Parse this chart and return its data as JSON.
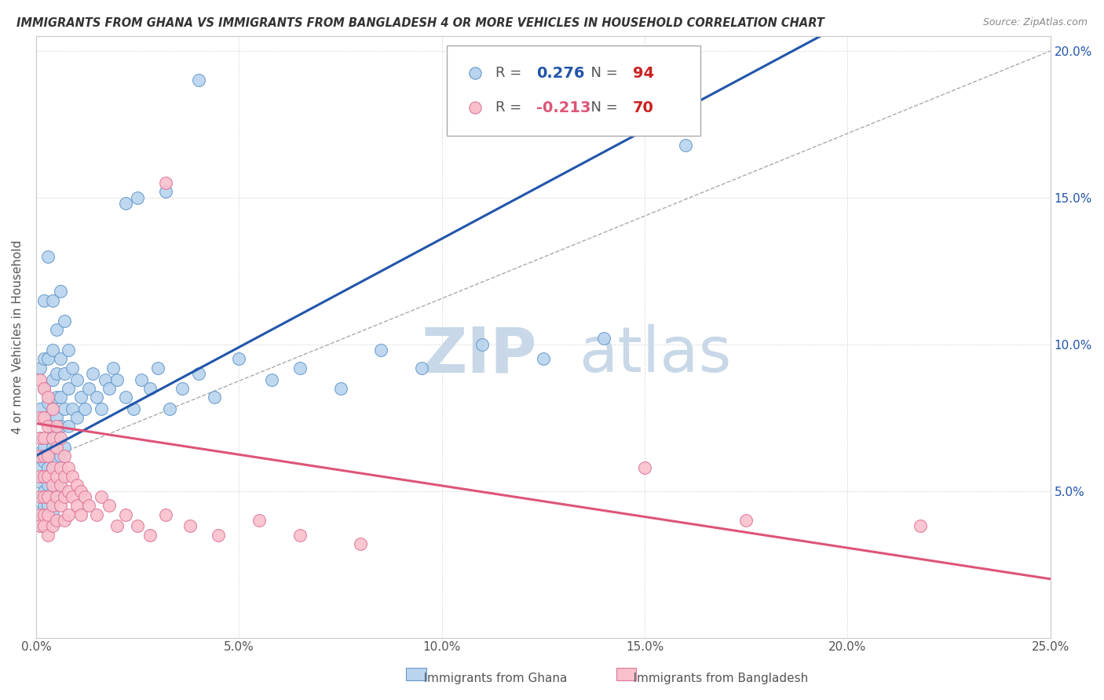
{
  "title": "IMMIGRANTS FROM GHANA VS IMMIGRANTS FROM BANGLADESH 4 OR MORE VEHICLES IN HOUSEHOLD CORRELATION CHART",
  "source": "Source: ZipAtlas.com",
  "ylabel": "4 or more Vehicles in Household",
  "xlim": [
    0.0,
    0.25
  ],
  "ylim": [
    0.0,
    0.205
  ],
  "ghana_R": 0.276,
  "ghana_N": 94,
  "bangladesh_R": -0.213,
  "bangladesh_N": 70,
  "ghana_color": "#b8d4ee",
  "bangladesh_color": "#f9c0cc",
  "ghana_line_color": "#2255aa",
  "bangladesh_line_color": "#dd5577",
  "ghana_edge_color": "#6699cc",
  "bangladesh_edge_color": "#dd7799",
  "watermark_zip": "ZIP",
  "watermark_atlas": "atlas",
  "watermark_color": "#c8d8e8",
  "legend_R_color": "#2255aa",
  "legend_N_color": "#cc2222",
  "legend2_R_color": "#dd5577",
  "ghana_scatter": [
    [
      0.001,
      0.092
    ],
    [
      0.001,
      0.078
    ],
    [
      0.001,
      0.068
    ],
    [
      0.001,
      0.063
    ],
    [
      0.001,
      0.058
    ],
    [
      0.001,
      0.053
    ],
    [
      0.001,
      0.048
    ],
    [
      0.001,
      0.043
    ],
    [
      0.001,
      0.038
    ],
    [
      0.002,
      0.115
    ],
    [
      0.002,
      0.095
    ],
    [
      0.002,
      0.085
    ],
    [
      0.002,
      0.075
    ],
    [
      0.002,
      0.065
    ],
    [
      0.002,
      0.06
    ],
    [
      0.002,
      0.055
    ],
    [
      0.002,
      0.05
    ],
    [
      0.002,
      0.045
    ],
    [
      0.002,
      0.038
    ],
    [
      0.003,
      0.13
    ],
    [
      0.003,
      0.095
    ],
    [
      0.003,
      0.08
    ],
    [
      0.003,
      0.075
    ],
    [
      0.003,
      0.068
    ],
    [
      0.003,
      0.062
    ],
    [
      0.003,
      0.058
    ],
    [
      0.003,
      0.052
    ],
    [
      0.003,
      0.045
    ],
    [
      0.003,
      0.04
    ],
    [
      0.004,
      0.115
    ],
    [
      0.004,
      0.098
    ],
    [
      0.004,
      0.088
    ],
    [
      0.004,
      0.078
    ],
    [
      0.004,
      0.072
    ],
    [
      0.004,
      0.065
    ],
    [
      0.004,
      0.058
    ],
    [
      0.004,
      0.05
    ],
    [
      0.004,
      0.042
    ],
    [
      0.005,
      0.105
    ],
    [
      0.005,
      0.09
    ],
    [
      0.005,
      0.082
    ],
    [
      0.005,
      0.075
    ],
    [
      0.005,
      0.068
    ],
    [
      0.005,
      0.06
    ],
    [
      0.005,
      0.052
    ],
    [
      0.006,
      0.118
    ],
    [
      0.006,
      0.095
    ],
    [
      0.006,
      0.082
    ],
    [
      0.006,
      0.072
    ],
    [
      0.006,
      0.062
    ],
    [
      0.007,
      0.108
    ],
    [
      0.007,
      0.09
    ],
    [
      0.007,
      0.078
    ],
    [
      0.007,
      0.065
    ],
    [
      0.008,
      0.098
    ],
    [
      0.008,
      0.085
    ],
    [
      0.008,
      0.072
    ],
    [
      0.009,
      0.092
    ],
    [
      0.009,
      0.078
    ],
    [
      0.01,
      0.088
    ],
    [
      0.01,
      0.075
    ],
    [
      0.011,
      0.082
    ],
    [
      0.012,
      0.078
    ],
    [
      0.013,
      0.085
    ],
    [
      0.014,
      0.09
    ],
    [
      0.015,
      0.082
    ],
    [
      0.016,
      0.078
    ],
    [
      0.017,
      0.088
    ],
    [
      0.018,
      0.085
    ],
    [
      0.019,
      0.092
    ],
    [
      0.02,
      0.088
    ],
    [
      0.022,
      0.082
    ],
    [
      0.024,
      0.078
    ],
    [
      0.026,
      0.088
    ],
    [
      0.028,
      0.085
    ],
    [
      0.03,
      0.092
    ],
    [
      0.033,
      0.078
    ],
    [
      0.036,
      0.085
    ],
    [
      0.04,
      0.09
    ],
    [
      0.044,
      0.082
    ],
    [
      0.05,
      0.095
    ],
    [
      0.058,
      0.088
    ],
    [
      0.065,
      0.092
    ],
    [
      0.075,
      0.085
    ],
    [
      0.085,
      0.098
    ],
    [
      0.095,
      0.092
    ],
    [
      0.11,
      0.1
    ],
    [
      0.125,
      0.095
    ],
    [
      0.14,
      0.102
    ],
    [
      0.16,
      0.168
    ],
    [
      0.04,
      0.19
    ],
    [
      0.025,
      0.15
    ],
    [
      0.022,
      0.148
    ],
    [
      0.032,
      0.152
    ]
  ],
  "bangladesh_scatter": [
    [
      0.001,
      0.088
    ],
    [
      0.001,
      0.075
    ],
    [
      0.001,
      0.068
    ],
    [
      0.001,
      0.062
    ],
    [
      0.001,
      0.055
    ],
    [
      0.001,
      0.048
    ],
    [
      0.001,
      0.042
    ],
    [
      0.001,
      0.038
    ],
    [
      0.002,
      0.085
    ],
    [
      0.002,
      0.075
    ],
    [
      0.002,
      0.068
    ],
    [
      0.002,
      0.062
    ],
    [
      0.002,
      0.055
    ],
    [
      0.002,
      0.048
    ],
    [
      0.002,
      0.042
    ],
    [
      0.002,
      0.038
    ],
    [
      0.003,
      0.082
    ],
    [
      0.003,
      0.072
    ],
    [
      0.003,
      0.062
    ],
    [
      0.003,
      0.055
    ],
    [
      0.003,
      0.048
    ],
    [
      0.003,
      0.042
    ],
    [
      0.003,
      0.035
    ],
    [
      0.004,
      0.078
    ],
    [
      0.004,
      0.068
    ],
    [
      0.004,
      0.058
    ],
    [
      0.004,
      0.052
    ],
    [
      0.004,
      0.045
    ],
    [
      0.004,
      0.038
    ],
    [
      0.005,
      0.072
    ],
    [
      0.005,
      0.065
    ],
    [
      0.005,
      0.055
    ],
    [
      0.005,
      0.048
    ],
    [
      0.005,
      0.04
    ],
    [
      0.006,
      0.068
    ],
    [
      0.006,
      0.058
    ],
    [
      0.006,
      0.052
    ],
    [
      0.006,
      0.045
    ],
    [
      0.007,
      0.062
    ],
    [
      0.007,
      0.055
    ],
    [
      0.007,
      0.048
    ],
    [
      0.007,
      0.04
    ],
    [
      0.008,
      0.058
    ],
    [
      0.008,
      0.05
    ],
    [
      0.008,
      0.042
    ],
    [
      0.009,
      0.055
    ],
    [
      0.009,
      0.048
    ],
    [
      0.01,
      0.052
    ],
    [
      0.01,
      0.045
    ],
    [
      0.011,
      0.05
    ],
    [
      0.011,
      0.042
    ],
    [
      0.012,
      0.048
    ],
    [
      0.013,
      0.045
    ],
    [
      0.015,
      0.042
    ],
    [
      0.016,
      0.048
    ],
    [
      0.018,
      0.045
    ],
    [
      0.02,
      0.038
    ],
    [
      0.022,
      0.042
    ],
    [
      0.025,
      0.038
    ],
    [
      0.028,
      0.035
    ],
    [
      0.032,
      0.042
    ],
    [
      0.038,
      0.038
    ],
    [
      0.045,
      0.035
    ],
    [
      0.055,
      0.04
    ],
    [
      0.065,
      0.035
    ],
    [
      0.08,
      0.032
    ],
    [
      0.15,
      0.058
    ],
    [
      0.175,
      0.04
    ],
    [
      0.218,
      0.038
    ],
    [
      0.032,
      0.155
    ]
  ]
}
